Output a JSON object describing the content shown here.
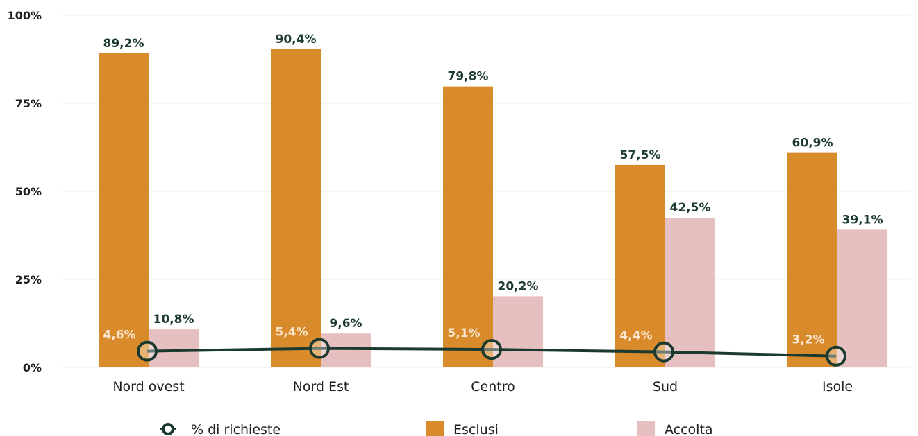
{
  "chart_data": {
    "type": "bar",
    "categories": [
      "Nord ovest",
      "Nord Est",
      "Centro",
      "Sud",
      "Isole"
    ],
    "series": [
      {
        "name": "Esclusi",
        "type": "bar",
        "values": [
          89.2,
          90.4,
          79.8,
          57.5,
          60.9
        ],
        "labels": [
          "89,2%",
          "90,4%",
          "79,8%",
          "57,5%",
          "60,9%"
        ],
        "color": "#d98a2b"
      },
      {
        "name": "Accolta",
        "type": "bar",
        "values": [
          10.8,
          9.6,
          20.2,
          42.5,
          39.1
        ],
        "labels": [
          "10,8%",
          "9,6%",
          "20,2%",
          "42,5%",
          "39,1%"
        ],
        "color": "#e6bfc0"
      },
      {
        "name": "% di richieste",
        "type": "line",
        "values": [
          4.6,
          5.4,
          5.1,
          4.4,
          3.2
        ],
        "labels": [
          "4,6%",
          "5,4%",
          "5,1%",
          "4,4%",
          "3,2%"
        ],
        "color": "#1b3a2f"
      }
    ],
    "yticks": [
      "0%",
      "25%",
      "50%",
      "75%",
      "100%"
    ],
    "ytick_values": [
      0,
      25,
      50,
      75,
      100
    ],
    "ylim": [
      0,
      100
    ],
    "grid": true,
    "legend_position": "bottom",
    "line_label_color": "#fbe6d0",
    "bar_label_color": "#1b3a2f"
  },
  "legend": [
    {
      "label": "% di richieste",
      "kind": "line-marker",
      "color": "#1b3a2f"
    },
    {
      "label": "Esclusi",
      "kind": "square",
      "color": "#d98a2b"
    },
    {
      "label": "Accolta",
      "kind": "square",
      "color": "#e6bfc0"
    }
  ]
}
